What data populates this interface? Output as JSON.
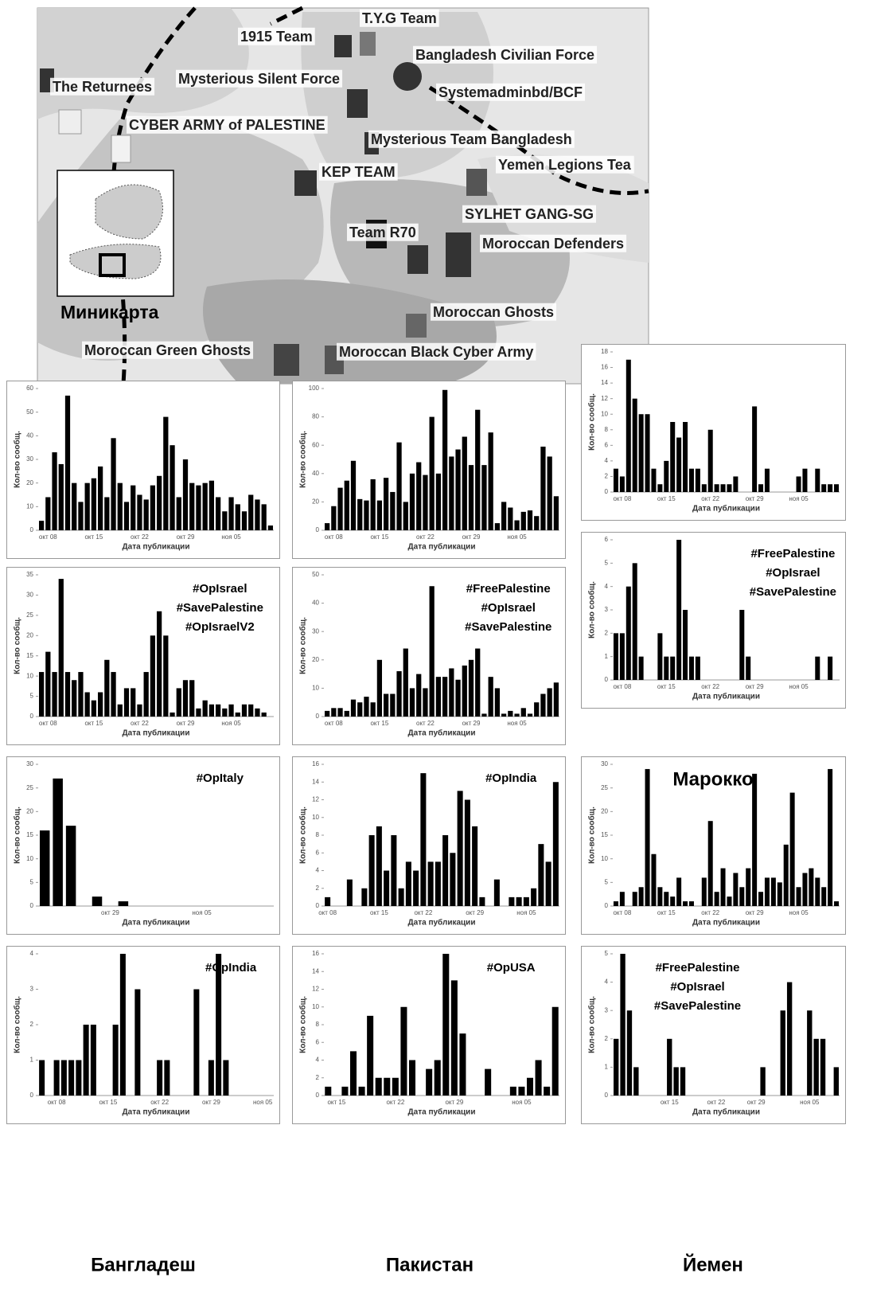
{
  "map": {
    "labels": [
      "1915 Team",
      "T.Y.G Team",
      "Bangladesh Civilian Force",
      "The Returnees",
      "Mysterious Silent Force",
      "Systemadminbd/BCF",
      "CYBER ARMY of PALESTINE",
      "Mysterious Team Bangladesh",
      "Yemen Legions Tea",
      "KEP TEAM",
      "SYLHET GANG-SG",
      "Team R70",
      "Moroccan Defenders",
      "Moroccan Ghosts",
      "Moroccan Green Ghosts",
      "Moroccan Black Cyber Army"
    ],
    "minimap_label": "Миникарта"
  },
  "region_labels": [
    "Бангладеш",
    "Пакистан",
    "Марокко",
    "Йемен"
  ],
  "chart_data": [
    {
      "type": "bar",
      "color": "#000000",
      "x_label": "Дата публикации",
      "y_label": "Кол-во сообщ.",
      "ylim": [
        0,
        60
      ],
      "yticks": [
        0,
        10,
        20,
        30,
        40,
        50,
        60
      ],
      "categories": [
        null,
        "окт 08",
        null,
        null,
        null,
        null,
        null,
        null,
        "окт 15",
        null,
        null,
        null,
        null,
        null,
        null,
        "окт 22",
        null,
        null,
        null,
        null,
        null,
        null,
        "окт 29",
        null,
        null,
        null,
        null,
        null,
        null,
        "ноя 05",
        null,
        null,
        null,
        null,
        null,
        null
      ],
      "values": [
        4,
        14,
        33,
        28,
        57,
        20,
        12,
        20,
        22,
        27,
        14,
        39,
        20,
        12,
        19,
        15,
        13,
        19,
        23,
        48,
        36,
        14,
        30,
        20,
        19,
        20,
        21,
        14,
        8,
        14,
        11,
        8,
        15,
        13,
        11,
        2
      ]
    },
    {
      "type": "bar",
      "color": "#000000",
      "x_label": "Дата публикации",
      "y_label": "Кол-во сообщ.",
      "ylim": [
        0,
        100
      ],
      "yticks": [
        0,
        20,
        40,
        60,
        80,
        100
      ],
      "categories": [
        null,
        "окт 08",
        null,
        null,
        null,
        null,
        null,
        null,
        "окт 15",
        null,
        null,
        null,
        null,
        null,
        null,
        "окт 22",
        null,
        null,
        null,
        null,
        null,
        null,
        "окт 29",
        null,
        null,
        null,
        null,
        null,
        null,
        "ноя 05",
        null,
        null,
        null,
        null,
        null,
        null
      ],
      "values": [
        5,
        17,
        30,
        35,
        49,
        22,
        21,
        36,
        21,
        37,
        27,
        62,
        20,
        40,
        48,
        39,
        80,
        40,
        99,
        52,
        57,
        66,
        46,
        85,
        46,
        69,
        5,
        20,
        16,
        7,
        13,
        14,
        10,
        59,
        52,
        24
      ]
    },
    {
      "type": "bar",
      "color": "#000000",
      "x_label": "Дата публикации",
      "y_label": "Кол-во сообщ.",
      "ylim": [
        0,
        18
      ],
      "yticks": [
        0,
        2,
        4,
        6,
        8,
        10,
        12,
        14,
        16,
        18
      ],
      "categories": [
        null,
        "окт 08",
        null,
        null,
        null,
        null,
        null,
        null,
        "окт 15",
        null,
        null,
        null,
        null,
        null,
        null,
        "окт 22",
        null,
        null,
        null,
        null,
        null,
        null,
        "окт 29",
        null,
        null,
        null,
        null,
        null,
        null,
        "ноя 05",
        null,
        null,
        null,
        null,
        null,
        null
      ],
      "values": [
        3,
        2,
        17,
        12,
        10,
        10,
        3,
        1,
        4,
        9,
        7,
        9,
        3,
        3,
        1,
        8,
        1,
        1,
        1,
        2,
        0,
        0,
        11,
        1,
        3,
        0,
        0,
        0,
        0,
        2,
        3,
        0,
        3,
        1,
        1,
        1
      ]
    },
    {
      "type": "bar",
      "color": "#000000",
      "x_label": "Дата публикации",
      "y_label": "Кол-во сообщ.",
      "ylim": [
        0,
        35
      ],
      "yticks": [
        0,
        5,
        10,
        15,
        20,
        25,
        30,
        35
      ],
      "annotations": [
        "#OpIsrael",
        "#SavePalestine",
        "#OpIsraelV2"
      ],
      "categories": [
        null,
        "окт 08",
        null,
        null,
        null,
        null,
        null,
        null,
        "окт 15",
        null,
        null,
        null,
        null,
        null,
        null,
        "окт 22",
        null,
        null,
        null,
        null,
        null,
        null,
        "окт 29",
        null,
        null,
        null,
        null,
        null,
        null,
        "ноя 05",
        null,
        null,
        null,
        null,
        null,
        null
      ],
      "values": [
        11,
        16,
        11,
        34,
        11,
        9,
        11,
        6,
        4,
        6,
        14,
        11,
        3,
        7,
        7,
        3,
        11,
        20,
        26,
        20,
        1,
        7,
        9,
        9,
        2,
        4,
        3,
        3,
        2,
        3,
        1,
        3,
        3,
        2,
        1,
        0
      ]
    },
    {
      "type": "bar",
      "color": "#000000",
      "x_label": "Дата публикации",
      "y_label": "Кол-во сообщ.",
      "ylim": [
        0,
        50
      ],
      "yticks": [
        0,
        10,
        20,
        30,
        40,
        50
      ],
      "annotations": [
        "#FreePalestine",
        "#OpIsrael",
        "#SavePalestine"
      ],
      "categories": [
        null,
        "окт 08",
        null,
        null,
        null,
        null,
        null,
        null,
        "окт 15",
        null,
        null,
        null,
        null,
        null,
        null,
        "окт 22",
        null,
        null,
        null,
        null,
        null,
        null,
        "окт 29",
        null,
        null,
        null,
        null,
        null,
        null,
        "ноя 05",
        null,
        null,
        null,
        null,
        null,
        null
      ],
      "values": [
        2,
        3,
        3,
        2,
        6,
        5,
        7,
        5,
        20,
        8,
        8,
        16,
        24,
        10,
        15,
        10,
        46,
        14,
        14,
        17,
        13,
        18,
        20,
        24,
        1,
        14,
        10,
        1,
        2,
        1,
        3,
        1,
        5,
        8,
        10,
        12
      ]
    },
    {
      "type": "bar",
      "color": "#000000",
      "x_label": "Дата публикации",
      "y_label": "Кол-во сообщ.",
      "ylim": [
        0,
        6
      ],
      "yticks": [
        0,
        1,
        2,
        3,
        4,
        5,
        6
      ],
      "annotations": [
        "#FreePalestine",
        "#OpIsrael",
        "#SavePalestine"
      ],
      "categories": [
        null,
        "окт 08",
        null,
        null,
        null,
        null,
        null,
        null,
        "окт 15",
        null,
        null,
        null,
        null,
        null,
        null,
        "окт 22",
        null,
        null,
        null,
        null,
        null,
        null,
        "окт 29",
        null,
        null,
        null,
        null,
        null,
        null,
        "ноя 05",
        null,
        null,
        null,
        null,
        null,
        null
      ],
      "values": [
        2,
        2,
        4,
        5,
        1,
        0,
        0,
        2,
        1,
        1,
        6,
        3,
        1,
        1,
        0,
        0,
        0,
        0,
        0,
        0,
        3,
        1,
        0,
        0,
        0,
        0,
        0,
        0,
        0,
        0,
        0,
        0,
        1,
        0,
        1,
        0
      ]
    },
    {
      "type": "bar",
      "color": "#000000",
      "x_label": "Дата публикации",
      "y_label": "Кол-во сообщ.",
      "ylim": [
        0,
        30
      ],
      "yticks": [
        0,
        5,
        10,
        15,
        20,
        25,
        30
      ],
      "annotations": [
        "#OpItaly"
      ],
      "categories": [
        null,
        null,
        null,
        null,
        null,
        "окт 29",
        null,
        null,
        null,
        null,
        null,
        null,
        "ноя 05",
        null,
        null,
        null,
        null,
        null
      ],
      "values": [
        16,
        27,
        17,
        0,
        2,
        0,
        1,
        0,
        0,
        0,
        0,
        0,
        0,
        0,
        0,
        0,
        0,
        0
      ]
    },
    {
      "type": "bar",
      "color": "#000000",
      "x_label": "Дата публикации",
      "y_label": "Кол-во сообщ.",
      "ylim": [
        0,
        16
      ],
      "yticks": [
        0,
        2,
        4,
        6,
        8,
        10,
        12,
        14,
        16
      ],
      "annotations": [
        "#OpIndia"
      ],
      "categories": [
        "окт 08",
        null,
        null,
        null,
        null,
        null,
        null,
        "окт 15",
        null,
        null,
        null,
        null,
        null,
        "окт 22",
        null,
        null,
        null,
        null,
        null,
        null,
        "окт 29",
        null,
        null,
        null,
        null,
        null,
        null,
        "ноя 05",
        null,
        null,
        null,
        null
      ],
      "values": [
        1,
        0,
        0,
        3,
        0,
        2,
        8,
        9,
        4,
        8,
        2,
        5,
        4,
        15,
        5,
        5,
        8,
        6,
        13,
        12,
        9,
        1,
        0,
        3,
        0,
        1,
        1,
        1,
        2,
        7,
        5,
        14
      ]
    },
    {
      "type": "bar",
      "color": "#000000",
      "x_label": "Дата публикации",
      "y_label": "Кол-во сообщ.",
      "ylim": [
        0,
        30
      ],
      "yticks": [
        0,
        5,
        10,
        15,
        20,
        25,
        30
      ],
      "categories": [
        null,
        "окт 08",
        null,
        null,
        null,
        null,
        null,
        null,
        "окт 15",
        null,
        null,
        null,
        null,
        null,
        null,
        "окт 22",
        null,
        null,
        null,
        null,
        null,
        null,
        "окт 29",
        null,
        null,
        null,
        null,
        null,
        null,
        "ноя 05",
        null,
        null,
        null,
        null,
        null,
        null
      ],
      "values": [
        1,
        3,
        0,
        3,
        4,
        29,
        11,
        4,
        3,
        2,
        6,
        1,
        1,
        0,
        6,
        18,
        3,
        8,
        2,
        7,
        4,
        8,
        28,
        3,
        6,
        6,
        5,
        13,
        24,
        4,
        7,
        8,
        6,
        4,
        29,
        1
      ]
    },
    {
      "type": "bar",
      "color": "#000000",
      "x_label": "Дата публикации",
      "y_label": "Кол-во сообщ.",
      "ylim": [
        0,
        4
      ],
      "yticks": [
        0,
        1,
        2,
        3,
        4
      ],
      "annotations": [
        "#OpIndia"
      ],
      "categories": [
        null,
        null,
        "окт 08",
        null,
        null,
        null,
        null,
        null,
        null,
        "окт 15",
        null,
        null,
        null,
        null,
        null,
        null,
        "окт 22",
        null,
        null,
        null,
        null,
        null,
        null,
        "окт 29",
        null,
        null,
        null,
        null,
        null,
        null,
        "ноя 05",
        null
      ],
      "values": [
        1,
        0,
        1,
        1,
        1,
        1,
        2,
        2,
        0,
        0,
        2,
        4,
        0,
        3,
        0,
        0,
        1,
        1,
        0,
        0,
        0,
        3,
        0,
        1,
        4,
        1,
        0,
        0,
        0,
        0,
        0,
        0
      ]
    },
    {
      "type": "bar",
      "color": "#000000",
      "x_label": "Дата публикации",
      "y_label": "Кол-во сообщ.",
      "ylim": [
        0,
        16
      ],
      "yticks": [
        0,
        2,
        4,
        6,
        8,
        10,
        12,
        14,
        16
      ],
      "annotations": [
        "#OpUSA"
      ],
      "categories": [
        null,
        "окт 15",
        null,
        null,
        null,
        null,
        null,
        null,
        "окт 22",
        null,
        null,
        null,
        null,
        null,
        null,
        "окт 29",
        null,
        null,
        null,
        null,
        null,
        null,
        null,
        "ноя 05",
        null,
        null,
        null,
        null
      ],
      "values": [
        1,
        0,
        1,
        5,
        1,
        9,
        2,
        2,
        2,
        10,
        4,
        0,
        3,
        4,
        16,
        13,
        7,
        0,
        0,
        3,
        0,
        0,
        1,
        1,
        2,
        4,
        1,
        10
      ]
    },
    {
      "type": "bar",
      "color": "#000000",
      "x_label": "Дата публикации",
      "y_label": "Кол-во сообщ.",
      "ylim": [
        0,
        5
      ],
      "yticks": [
        0,
        1,
        2,
        3,
        4,
        5
      ],
      "annotations": [
        "#FreePalestine",
        "#OpIsrael",
        "#SavePalestine"
      ],
      "categories": [
        null,
        null,
        null,
        null,
        null,
        null,
        null,
        null,
        "окт 15",
        null,
        null,
        null,
        null,
        null,
        null,
        "окт 22",
        null,
        null,
        null,
        null,
        null,
        "окт 29",
        null,
        null,
        null,
        null,
        null,
        null,
        null,
        "ноя 05",
        null,
        null,
        null,
        null
      ],
      "values": [
        2,
        5,
        3,
        1,
        0,
        0,
        0,
        0,
        2,
        1,
        1,
        0,
        0,
        0,
        0,
        0,
        0,
        0,
        0,
        0,
        0,
        0,
        1,
        0,
        0,
        3,
        4,
        0,
        0,
        3,
        2,
        2,
        0,
        1
      ]
    }
  ]
}
